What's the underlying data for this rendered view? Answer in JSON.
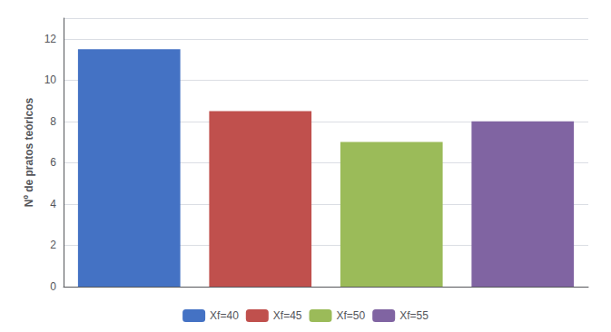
{
  "chart_data": {
    "type": "bar",
    "categories": [
      "Xf=40",
      "Xf=45",
      "Xf=50",
      "Xf=55"
    ],
    "values": [
      11.5,
      8.5,
      7.0,
      8.0
    ],
    "colors": [
      "#4472C4",
      "#C0504D",
      "#9BBB59",
      "#8064A2"
    ],
    "ylabel": "Nº de pratos teóricos",
    "ylim": [
      0,
      13
    ],
    "yticks": [
      0,
      2,
      4,
      6,
      8,
      10,
      12
    ],
    "grid": true,
    "legend": "bottom",
    "tick_labels": "y"
  }
}
